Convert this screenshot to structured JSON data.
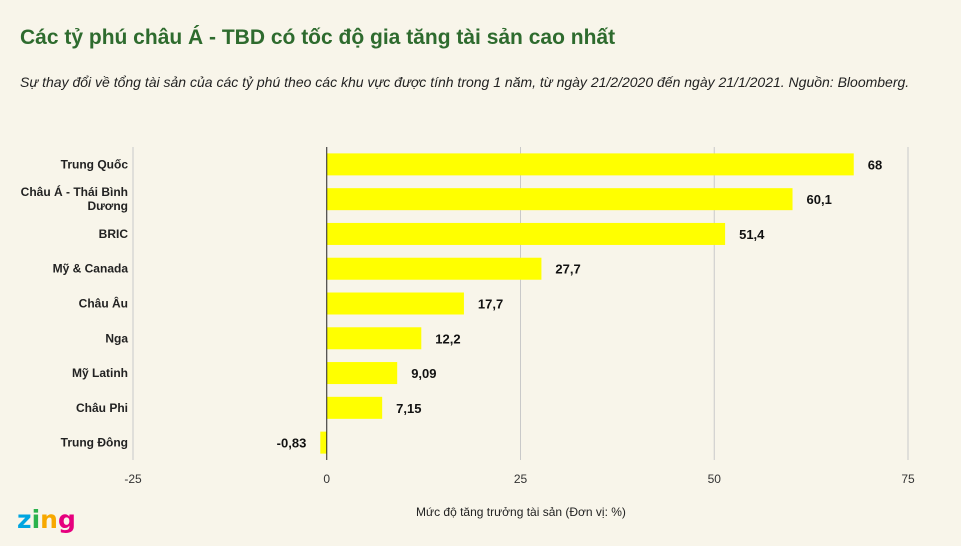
{
  "title": "Các tỷ phú châu Á - TBD có tốc độ gia tăng tài sản cao nhất",
  "subtitle": "Sự thay đổi về tổng tài sản của các tỷ phú theo các khu vực được tính trong 1 năm, từ ngày 21/2/2020 đến ngày 21/1/2021. Nguồn: Bloomberg.",
  "logo": {
    "text": "zing",
    "colors": [
      "#00a5e0",
      "#2bb24c",
      "#f7a800",
      "#e6007e"
    ]
  },
  "colors": {
    "bar": "#ffff00",
    "title": "#2e6b2e",
    "background": "#f8f5ea",
    "grid": "#c9c9c9",
    "zero_line": "#222222"
  },
  "chart_data": {
    "type": "bar",
    "orientation": "horizontal",
    "categories": [
      "Trung Quốc",
      "Châu Á - Thái Bình Dương",
      "BRIC",
      "Mỹ & Canada",
      "Châu Âu",
      "Nga",
      "Mỹ Latinh",
      "Châu Phi",
      "Trung Đông"
    ],
    "values": [
      68,
      60.1,
      51.4,
      27.7,
      17.7,
      12.2,
      9.09,
      7.15,
      -0.83
    ],
    "value_labels": [
      "68",
      "60,1",
      "51,4",
      "27,7",
      "17,7",
      "12,2",
      "9,09",
      "7,15",
      "-0,83"
    ],
    "xlabel": "Mức độ tăng trưởng tài sản (Đơn vị: %)",
    "xlim": [
      -25,
      75
    ],
    "xticks": [
      -25,
      0,
      25,
      50,
      75
    ],
    "grid": true
  }
}
